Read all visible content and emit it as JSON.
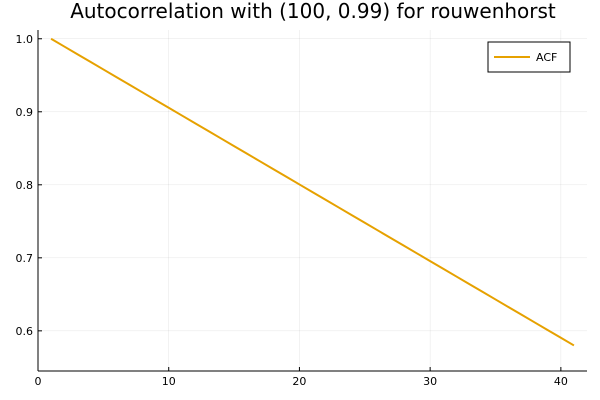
{
  "chart_data": {
    "type": "line",
    "title": "Autocorrelation with (100, 0.99) for rouwenhorst",
    "xlabel": "",
    "ylabel": "",
    "xlim": [
      0,
      42
    ],
    "ylim": [
      0.545,
      1.012
    ],
    "xticks": [
      0,
      10,
      20,
      30,
      40
    ],
    "yticks": [
      0.6,
      0.7,
      0.8,
      0.9,
      1.0
    ],
    "ytick_labels": [
      "0.6",
      "0.7",
      "0.8",
      "0.9",
      "1.0"
    ],
    "grid": true,
    "legend_position": "top-right",
    "series": [
      {
        "name": "ACF",
        "color": "#e6a100",
        "x": [
          1,
          2,
          3,
          4,
          5,
          6,
          7,
          8,
          9,
          10,
          11,
          12,
          13,
          14,
          15,
          16,
          17,
          18,
          19,
          20,
          21,
          22,
          23,
          24,
          25,
          26,
          27,
          28,
          29,
          30,
          31,
          32,
          33,
          34,
          35,
          36,
          37,
          38,
          39,
          40,
          41
        ],
        "y": [
          1.0,
          0.9895,
          0.979,
          0.9685,
          0.958,
          0.9475,
          0.937,
          0.9265,
          0.916,
          0.9055,
          0.895,
          0.8845,
          0.874,
          0.8635,
          0.853,
          0.8425,
          0.832,
          0.8215,
          0.811,
          0.8005,
          0.79,
          0.7795,
          0.769,
          0.7585,
          0.748,
          0.7375,
          0.727,
          0.7165,
          0.706,
          0.6955,
          0.685,
          0.6745,
          0.664,
          0.6535,
          0.643,
          0.6325,
          0.622,
          0.6115,
          0.601,
          0.5905,
          0.58
        ]
      }
    ]
  }
}
